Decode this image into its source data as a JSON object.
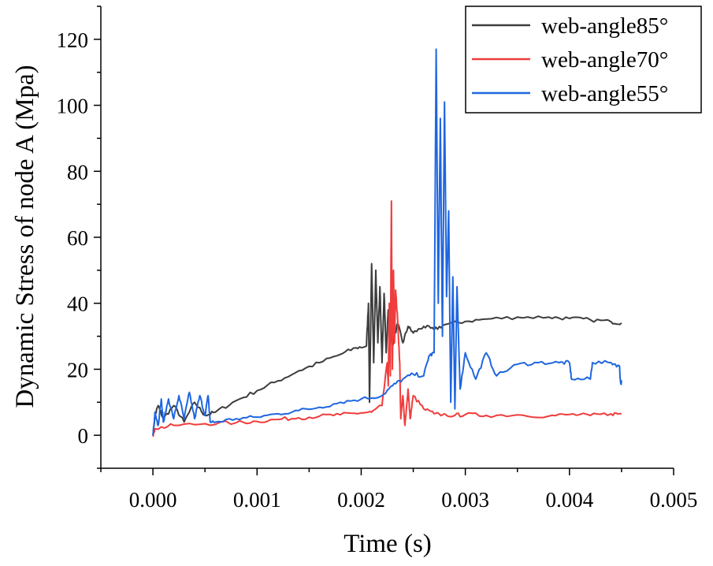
{
  "chart_data": {
    "type": "line",
    "title": "",
    "xlabel": "Time (s)",
    "ylabel": "Dynamic Stress of node A (Mpa)",
    "xlim": [
      -0.0005,
      0.005
    ],
    "ylim": [
      -10,
      130
    ],
    "x_ticks": [
      0.0,
      0.001,
      0.002,
      0.003,
      0.004,
      0.005
    ],
    "x_tick_labels": [
      "0.000",
      "0.001",
      "0.002",
      "0.003",
      "0.004",
      "0.005"
    ],
    "y_ticks": [
      0,
      20,
      40,
      60,
      80,
      100,
      120
    ],
    "y_tick_labels": [
      "0",
      "20",
      "40",
      "60",
      "80",
      "100",
      "120"
    ],
    "grid": false,
    "legend_position": "top-right",
    "series": [
      {
        "name": "web-angle85°",
        "color": "#3d3d3d",
        "points": [
          [
            0.0,
            0
          ],
          [
            2e-05,
            6
          ],
          [
            5e-05,
            9
          ],
          [
            0.0001,
            5
          ],
          [
            0.0002,
            9
          ],
          [
            0.0003,
            4
          ],
          [
            0.0004,
            10
          ],
          [
            0.0005,
            6
          ],
          [
            0.0006,
            7
          ],
          [
            0.0008,
            10.5
          ],
          [
            0.001,
            13.5
          ],
          [
            0.0012,
            16.5
          ],
          [
            0.0014,
            19.5
          ],
          [
            0.0016,
            22
          ],
          [
            0.0018,
            24.5
          ],
          [
            0.00195,
            26.5
          ],
          [
            0.00205,
            27
          ],
          [
            0.00207,
            40
          ],
          [
            0.00208,
            10
          ],
          [
            0.0021,
            52
          ],
          [
            0.00212,
            22
          ],
          [
            0.00214,
            50
          ],
          [
            0.00216,
            28
          ],
          [
            0.00218,
            45
          ],
          [
            0.0022,
            22
          ],
          [
            0.00222,
            43
          ],
          [
            0.00224,
            25
          ],
          [
            0.00226,
            38
          ],
          [
            0.0023,
            27
          ],
          [
            0.00235,
            34
          ],
          [
            0.0024,
            28
          ],
          [
            0.00245,
            33
          ],
          [
            0.0025,
            31
          ],
          [
            0.0026,
            33
          ],
          [
            0.0027,
            32
          ],
          [
            0.0028,
            33.5
          ],
          [
            0.003,
            34.5
          ],
          [
            0.0032,
            35.2
          ],
          [
            0.0035,
            35.8
          ],
          [
            0.0038,
            35.8
          ],
          [
            0.004,
            35.4
          ],
          [
            0.0042,
            35
          ],
          [
            0.0044,
            34.4
          ],
          [
            0.0045,
            34
          ]
        ]
      },
      {
        "name": "web-angle70°",
        "color": "#f03c3c",
        "points": [
          [
            0.0,
            0
          ],
          [
            2e-05,
            2
          ],
          [
            0.0002,
            3
          ],
          [
            0.0005,
            3.5
          ],
          [
            0.0008,
            3.8
          ],
          [
            0.001,
            4.2
          ],
          [
            0.0012,
            4.8
          ],
          [
            0.0014,
            5.3
          ],
          [
            0.0016,
            5.8
          ],
          [
            0.0018,
            6.2
          ],
          [
            0.002,
            6.8
          ],
          [
            0.0021,
            7
          ],
          [
            0.0022,
            9
          ],
          [
            0.00225,
            22
          ],
          [
            0.00226,
            15
          ],
          [
            0.00227,
            40
          ],
          [
            0.00228,
            18
          ],
          [
            0.00229,
            71
          ],
          [
            0.0023,
            20
          ],
          [
            0.00231,
            50
          ],
          [
            0.00232,
            28
          ],
          [
            0.00233,
            44
          ],
          [
            0.00235,
            35
          ],
          [
            0.00237,
            22
          ],
          [
            0.00238,
            5
          ],
          [
            0.0024,
            12
          ],
          [
            0.00242,
            3
          ],
          [
            0.00245,
            14
          ],
          [
            0.00247,
            5
          ],
          [
            0.0025,
            12
          ],
          [
            0.0026,
            8
          ],
          [
            0.0027,
            6.5
          ],
          [
            0.0029,
            6
          ],
          [
            0.003,
            6.3
          ],
          [
            0.0032,
            6
          ],
          [
            0.0035,
            6.2
          ],
          [
            0.0038,
            5.8
          ],
          [
            0.004,
            6.3
          ],
          [
            0.0042,
            6
          ],
          [
            0.0044,
            6.5
          ],
          [
            0.0045,
            6.5
          ]
        ]
      },
      {
        "name": "web-angle55°",
        "color": "#1f66e0",
        "points": [
          [
            0.0,
            0
          ],
          [
            2e-05,
            7
          ],
          [
            5e-05,
            3
          ],
          [
            8e-05,
            11
          ],
          [
            0.0001,
            4
          ],
          [
            0.00015,
            11
          ],
          [
            0.0002,
            5
          ],
          [
            0.00025,
            12
          ],
          [
            0.0003,
            5
          ],
          [
            0.00035,
            13
          ],
          [
            0.0004,
            5
          ],
          [
            0.00045,
            12
          ],
          [
            0.0005,
            6
          ],
          [
            0.00053,
            12
          ],
          [
            0.00055,
            4
          ],
          [
            0.0006,
            4
          ],
          [
            0.0008,
            5
          ],
          [
            0.001,
            5.5
          ],
          [
            0.0012,
            6.5
          ],
          [
            0.0014,
            7.5
          ],
          [
            0.0016,
            8.5
          ],
          [
            0.0018,
            10
          ],
          [
            0.002,
            11
          ],
          [
            0.0022,
            12
          ],
          [
            0.0023,
            15
          ],
          [
            0.0024,
            17
          ],
          [
            0.0025,
            18.5
          ],
          [
            0.0026,
            18
          ],
          [
            0.00265,
            24
          ],
          [
            0.0027,
            25
          ],
          [
            0.00272,
            117
          ],
          [
            0.00274,
            40
          ],
          [
            0.00276,
            96
          ],
          [
            0.00278,
            30
          ],
          [
            0.0028,
            101
          ],
          [
            0.00282,
            42
          ],
          [
            0.00284,
            68
          ],
          [
            0.00286,
            10
          ],
          [
            0.00288,
            48
          ],
          [
            0.0029,
            8
          ],
          [
            0.00292,
            45
          ],
          [
            0.00295,
            14
          ],
          [
            0.003,
            25
          ],
          [
            0.0031,
            17
          ],
          [
            0.0032,
            25
          ],
          [
            0.0033,
            18
          ],
          [
            0.0035,
            21.5
          ],
          [
            0.0037,
            22
          ],
          [
            0.0039,
            22
          ],
          [
            0.004,
            22
          ],
          [
            0.00402,
            17
          ],
          [
            0.0042,
            17
          ],
          [
            0.00422,
            22
          ],
          [
            0.0044,
            22
          ],
          [
            0.00448,
            21
          ],
          [
            0.00449,
            16
          ],
          [
            0.0045,
            16
          ]
        ]
      }
    ]
  }
}
